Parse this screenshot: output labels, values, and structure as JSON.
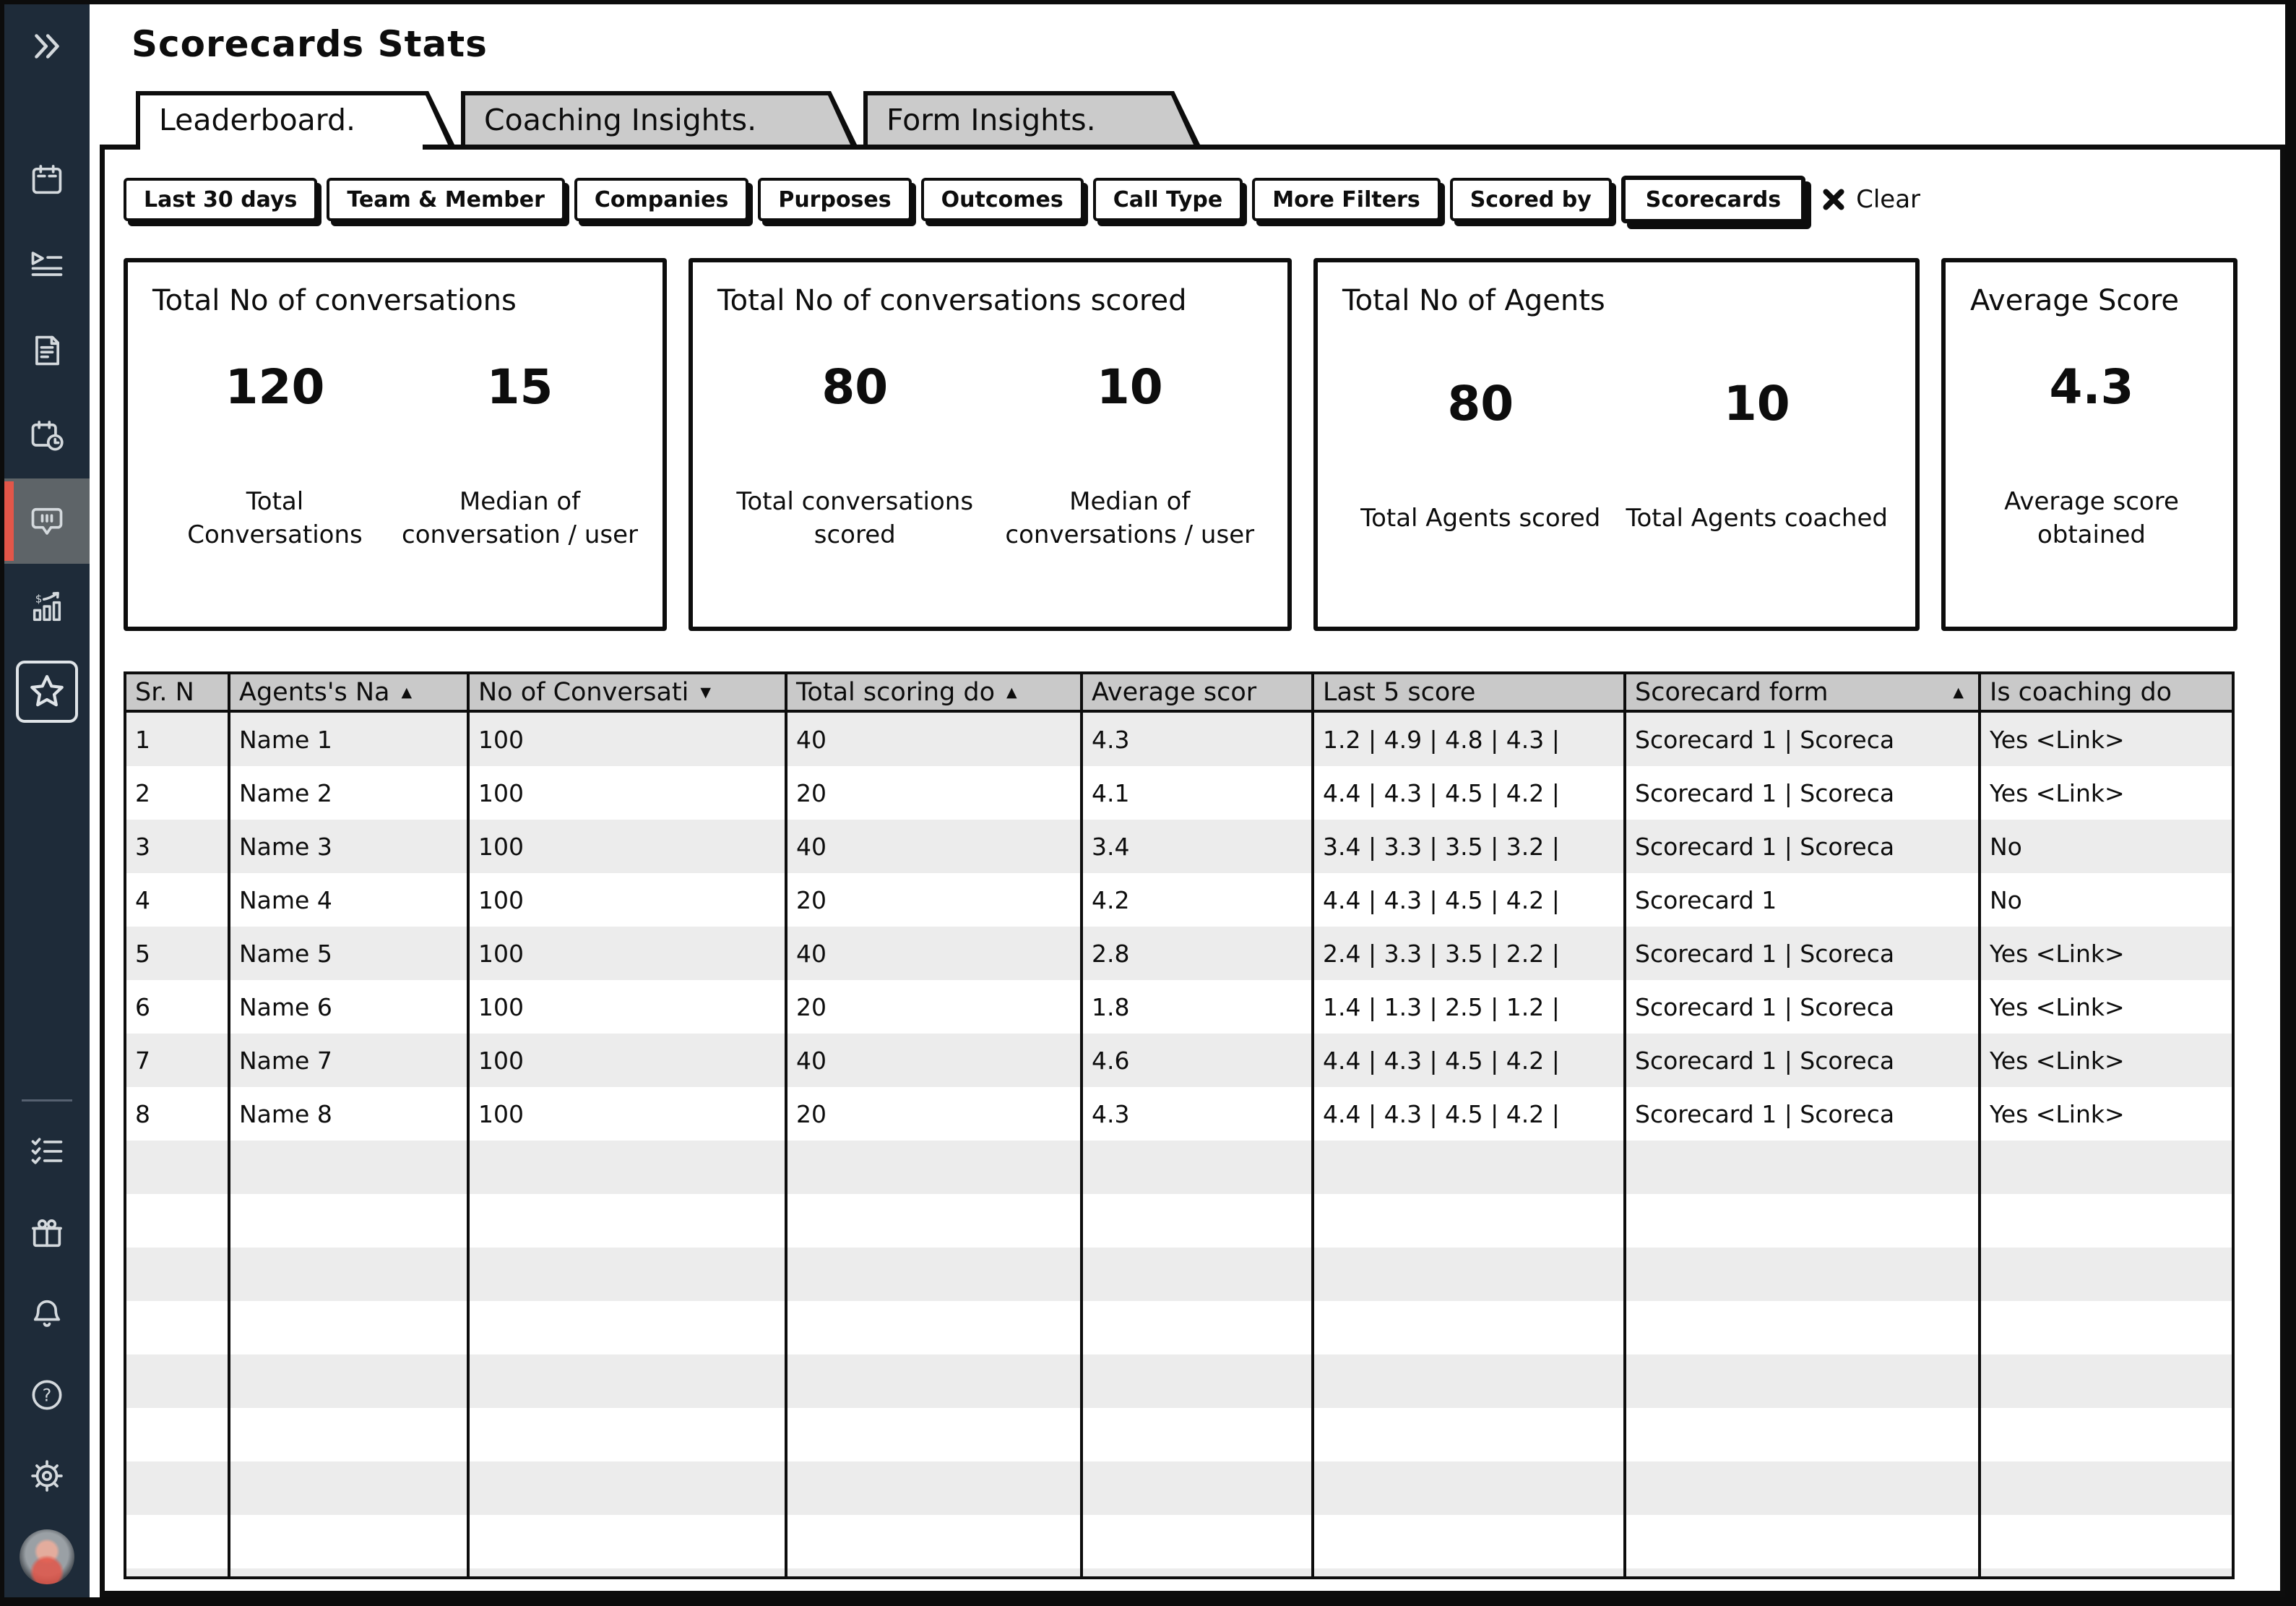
{
  "app": {
    "title": "Scorecards Stats",
    "colors": {
      "sidebar_bg": "#1e2b39",
      "sidebar_active_bg": "#5e6468",
      "accent_red": "#e25649",
      "table_header_gray": "#c9c9c9",
      "row_stripe_gray": "#ececec",
      "inactive_tab_gray": "#cbcbcb"
    }
  },
  "sidebar": {
    "icons_top": [
      "chevrons-right-icon",
      "calendar-icon",
      "playlist-icon",
      "document-icon",
      "calendar-clock-icon",
      "chat-icon",
      "chart-dollar-icon",
      "star-icon"
    ],
    "icons_bottom": [
      "checklist-icon",
      "gift-icon",
      "bell-icon",
      "help-icon",
      "gear-icon",
      "avatar"
    ],
    "active_item": "chat"
  },
  "tabs": [
    {
      "label": "Leaderboard.",
      "active": true
    },
    {
      "label": "Coaching Insights.",
      "active": false
    },
    {
      "label": "Form Insights.",
      "active": false
    }
  ],
  "filters": {
    "buttons": [
      {
        "label": "Last 30 days"
      },
      {
        "label": "Team & Member"
      },
      {
        "label": "Companies"
      },
      {
        "label": "Purposes"
      },
      {
        "label": "Outcomes"
      },
      {
        "label": "Call Type"
      },
      {
        "label": "More Filters"
      },
      {
        "label": "Scored by"
      },
      {
        "label": "Scorecards",
        "emphasized": true
      }
    ],
    "clear_label": "Clear"
  },
  "cards": [
    {
      "title": "Total No of conversations",
      "stats": [
        {
          "value": "120",
          "label": "Total\nConversations"
        },
        {
          "value": "15",
          "label": "Median of\nconversation / user"
        }
      ]
    },
    {
      "title": "Total No of conversations scored",
      "stats": [
        {
          "value": "80",
          "label": "Total conversations\nscored"
        },
        {
          "value": "10",
          "label": "Median of\nconversations / user"
        }
      ]
    },
    {
      "title": "Total No of Agents",
      "stats": [
        {
          "value": "80",
          "label": "Total Agents scored"
        },
        {
          "value": "10",
          "label": "Total Agents coached"
        }
      ]
    },
    {
      "title": "Average Score",
      "stats": [
        {
          "value": "4.3",
          "label": "Average score\nobtained"
        }
      ]
    }
  ],
  "table": {
    "columns": [
      {
        "label": "Sr. N",
        "sort": null
      },
      {
        "label": "Agents's Na",
        "sort": "asc"
      },
      {
        "label": "No of Conversati",
        "sort": "desc"
      },
      {
        "label": "Total scoring do",
        "sort": "asc"
      },
      {
        "label": "Average scor",
        "sort": null
      },
      {
        "label": "Last 5 score",
        "sort": null
      },
      {
        "label": "Scorecard form",
        "sort": "asc",
        "sort_right": true
      },
      {
        "label": "Is coaching do",
        "sort": null
      }
    ],
    "rows": [
      [
        "1",
        "Name 1",
        "100",
        "40",
        "4.3",
        "1.2 | 4.9 | 4.8 | 4.3 |",
        "Scorecard 1 | Scoreca",
        "Yes <Link>"
      ],
      [
        "2",
        "Name 2",
        "100",
        "20",
        "4.1",
        "4.4 | 4.3 | 4.5 | 4.2 |",
        "Scorecard 1 | Scoreca",
        "Yes <Link>"
      ],
      [
        "3",
        "Name 3",
        "100",
        "40",
        "3.4",
        "3.4 | 3.3 | 3.5 | 3.2 |",
        "Scorecard 1 | Scoreca",
        "No"
      ],
      [
        "4",
        "Name 4",
        "100",
        "20",
        "4.2",
        "4.4 | 4.3 | 4.5 | 4.2 |",
        "Scorecard 1",
        "No"
      ],
      [
        "5",
        "Name 5",
        "100",
        "40",
        "2.8",
        "2.4 | 3.3 | 3.5 | 2.2 |",
        "Scorecard 1 | Scoreca",
        "Yes <Link>"
      ],
      [
        "6",
        "Name 6",
        "100",
        "20",
        "1.8",
        "1.4 | 1.3 | 2.5 | 1.2 |",
        "Scorecard 1 | Scoreca",
        "Yes <Link>"
      ],
      [
        "7",
        "Name 7",
        "100",
        "40",
        "4.6",
        "4.4 | 4.3 | 4.5 | 4.2 |",
        "Scorecard 1 | Scoreca",
        "Yes <Link>"
      ],
      [
        "8",
        "Name 8",
        "100",
        "20",
        "4.3",
        "4.4 | 4.3 | 4.5 | 4.2 |",
        "Scorecard 1 | Scoreca",
        "Yes <Link>"
      ]
    ],
    "empty_row_count": 9
  }
}
